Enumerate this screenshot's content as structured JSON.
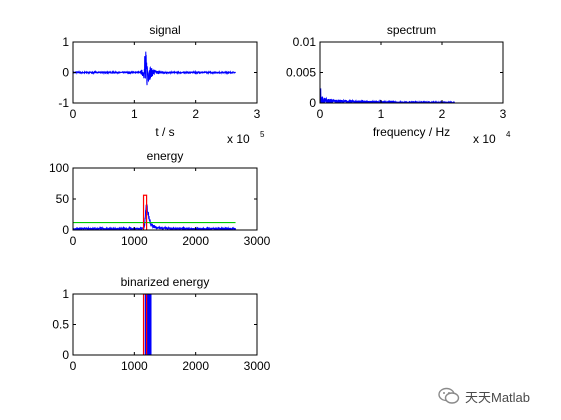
{
  "figure": {
    "background": "#ffffff",
    "colors": {
      "signal": "#0000ff",
      "threshold": "#00cc00",
      "segment": "#ff0000",
      "axis": "#000000"
    }
  },
  "chart_data": [
    {
      "id": "signal",
      "type": "line",
      "title": "signal",
      "xlabel": "t / s",
      "ylabel": "",
      "xlim": [
        0,
        300000
      ],
      "ylim": [
        -1,
        1
      ],
      "xticks": [
        0,
        100000,
        200000,
        300000
      ],
      "xtick_labels": [
        "0",
        "1",
        "2",
        "3"
      ],
      "yticks": [
        -1,
        0,
        1
      ],
      "ytick_labels": [
        "-1",
        "0",
        "1"
      ],
      "x_multiplier": {
        "base": "x 10",
        "exponent": "5"
      },
      "series": [
        {
          "color": "#0000ff",
          "x": [
            0,
            110000,
            116000,
            117000,
            118000,
            119000,
            120000,
            121000,
            122000,
            123000,
            124000,
            126000,
            128000,
            131000,
            135000,
            140000,
            150000,
            160000,
            265000
          ],
          "y": [
            0.02,
            0.02,
            0.15,
            -0.9,
            0.9,
            -0.6,
            0.55,
            -0.45,
            0.4,
            -0.3,
            0.3,
            -0.22,
            0.15,
            -0.1,
            0.07,
            -0.05,
            0.03,
            0.02,
            0.02
          ],
          "envelope_amplitude": [
            0.02,
            0.02,
            0.2,
            0.95,
            0.9,
            0.65,
            0.55,
            0.45,
            0.4,
            0.32,
            0.28,
            0.22,
            0.15,
            0.1,
            0.07,
            0.05,
            0.03,
            0.02,
            0.02
          ]
        }
      ]
    },
    {
      "id": "spectrum",
      "type": "line",
      "title": "spectrum",
      "xlabel": "frequency / Hz",
      "ylabel": "",
      "xlim": [
        0,
        30000
      ],
      "ylim": [
        0,
        0.01
      ],
      "xticks": [
        0,
        10000,
        20000,
        30000
      ],
      "xtick_labels": [
        "0",
        "1",
        "2",
        "3"
      ],
      "yticks": [
        0,
        0.005,
        0.01
      ],
      "ytick_labels": [
        "0",
        "0.005",
        "0.01"
      ],
      "x_multiplier": {
        "base": "x 10",
        "exponent": "4"
      },
      "series": [
        {
          "color": "#0000ff",
          "x": [
            0,
            100,
            200,
            400,
            700,
            1000,
            2000,
            4000,
            7000,
            10000,
            15000,
            22050
          ],
          "y": [
            0.0001,
            0.0012,
            0.0007,
            0.0005,
            0.0004,
            0.0004,
            0.0003,
            0.00025,
            0.0002,
            0.00015,
            0.0001,
            8e-05
          ],
          "envelope_amplitude": [
            0.0001,
            0.0015,
            0.0009,
            0.0006,
            0.0005,
            0.0004,
            0.0003,
            0.00025,
            0.0002,
            0.00015,
            0.0001,
            8e-05
          ]
        }
      ]
    },
    {
      "id": "energy",
      "type": "line",
      "title": "energy",
      "xlabel": "",
      "ylabel": "",
      "xlim": [
        0,
        3000
      ],
      "ylim": [
        0,
        100
      ],
      "xticks": [
        0,
        1000,
        2000,
        3000
      ],
      "xtick_labels": [
        "0",
        "1000",
        "2000",
        "3000"
      ],
      "yticks": [
        0,
        50,
        100
      ],
      "ytick_labels": [
        "0",
        "50",
        "100"
      ],
      "series": [
        {
          "color": "#0000ff",
          "x": [
            0,
            1000,
            1150,
            1170,
            1190,
            1210,
            1230,
            1260,
            1300,
            1350,
            1450,
            1600,
            2000,
            2650
          ],
          "y": [
            2,
            2,
            3,
            8,
            45,
            35,
            22,
            12,
            7,
            4,
            3,
            2,
            2,
            2
          ],
          "envelope_amplitude": [
            1.5,
            1.5,
            2,
            4,
            10,
            8,
            6,
            4,
            3,
            2,
            1.5,
            1.5,
            1.5,
            1.5
          ]
        },
        {
          "color": "#00cc00",
          "x": [
            0,
            2650
          ],
          "y": [
            12,
            12
          ]
        },
        {
          "color": "#ff0000",
          "x": [
            1150,
            1150,
            1200,
            1200
          ],
          "y": [
            0,
            56,
            56,
            0
          ]
        }
      ]
    },
    {
      "id": "binarized",
      "type": "line",
      "title": "binarized energy",
      "xlabel": "",
      "ylabel": "",
      "xlim": [
        0,
        3000
      ],
      "ylim": [
        0,
        1
      ],
      "xticks": [
        0,
        1000,
        2000,
        3000
      ],
      "xtick_labels": [
        "0",
        "1000",
        "2000",
        "3000"
      ],
      "yticks": [
        0,
        0.5,
        1
      ],
      "ytick_labels": [
        "0",
        "0.5",
        "1"
      ],
      "series": [
        {
          "color": "#0000ff",
          "fill_between": [
            1170,
            1280
          ],
          "y": [
            0,
            1
          ]
        },
        {
          "color": "#ff0000",
          "x": [
            1150,
            1150,
            1200,
            1200
          ],
          "y": [
            0,
            1,
            1,
            0
          ]
        }
      ]
    }
  ],
  "watermark": {
    "text": "天天Matlab",
    "icon": "wechat-icon"
  }
}
